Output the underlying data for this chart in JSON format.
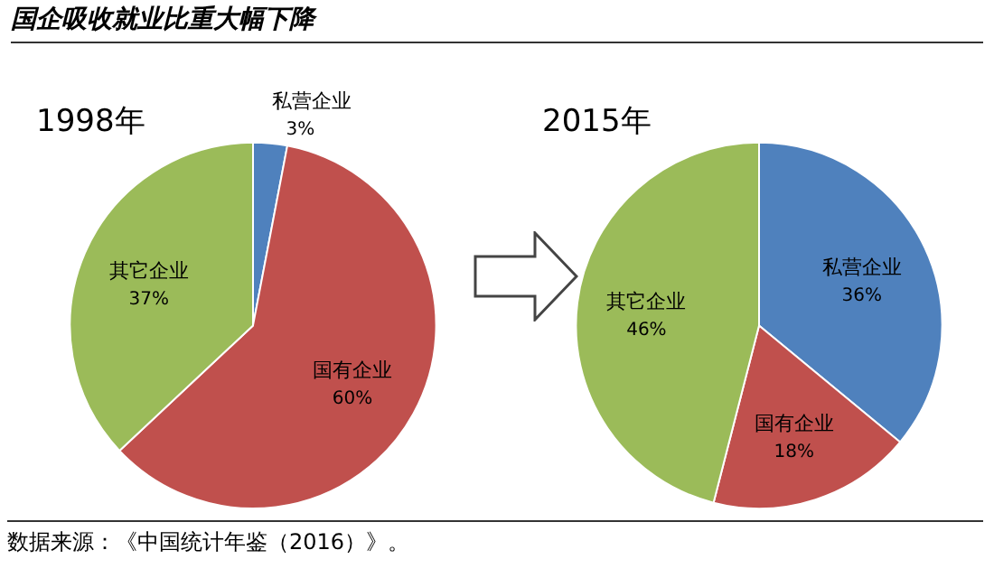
{
  "chart_data": [
    {
      "type": "other",
      "title": "国企吸收就业比重大幅下降",
      "annotations": [
        "数据来源：《中国统计年鉴（2016）》。"
      ]
    },
    {
      "type": "pie",
      "title": "1998年",
      "categories": [
        "私营企业",
        "国有企业",
        "其它企业"
      ],
      "values": [
        3,
        60,
        37
      ],
      "value_labels": [
        "3%",
        "60%",
        "37%"
      ],
      "colors": [
        "#4f81bd",
        "#c0504d",
        "#9bbb59"
      ],
      "legend": false
    },
    {
      "type": "pie",
      "title": "2015年",
      "categories": [
        "私营企业",
        "国有企业",
        "其它企业"
      ],
      "values": [
        36,
        18,
        46
      ],
      "value_labels": [
        "36%",
        "18%",
        "46%"
      ],
      "colors": [
        "#4f81bd",
        "#c0504d",
        "#9bbb59"
      ],
      "legend": false
    }
  ]
}
